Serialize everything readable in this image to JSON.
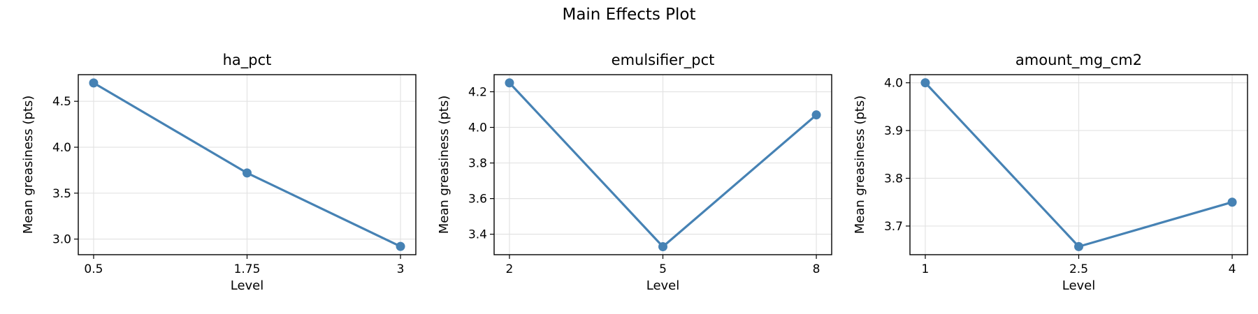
{
  "figure": {
    "title": "Main Effects Plot"
  },
  "colors": {
    "series": "#4682b4",
    "grid": "#e3e3e3",
    "axis": "#000000"
  },
  "chart_data": [
    {
      "type": "line",
      "title": "ha_pct",
      "xlabel": "Level",
      "ylabel": "Mean greasiness (pts)",
      "x": [
        0.5,
        1.75,
        3
      ],
      "x_tick_labels": [
        "0.5",
        "1.75",
        "3"
      ],
      "values": [
        4.7,
        3.72,
        2.92
      ],
      "ylim": [
        2.83,
        4.79
      ],
      "y_ticks": [
        3.0,
        3.5,
        4.0,
        4.5
      ],
      "y_tick_labels": [
        "3.0",
        "3.5",
        "4.0",
        "4.5"
      ],
      "grid": true,
      "marker": "circle"
    },
    {
      "type": "line",
      "title": "emulsifier_pct",
      "xlabel": "Level",
      "ylabel": "Mean greasiness (pts)",
      "x": [
        2,
        5,
        8
      ],
      "x_tick_labels": [
        "2",
        "5",
        "8"
      ],
      "values": [
        4.25,
        3.33,
        4.07
      ],
      "ylim": [
        3.285,
        4.296
      ],
      "y_ticks": [
        3.4,
        3.6,
        3.8,
        4.0,
        4.2
      ],
      "y_tick_labels": [
        "3.4",
        "3.6",
        "3.8",
        "4.0",
        "4.2"
      ],
      "grid": true,
      "marker": "circle"
    },
    {
      "type": "line",
      "title": "amount_mg_cm2",
      "xlabel": "Level",
      "ylabel": "Mean greasiness (pts)",
      "x": [
        1,
        2.5,
        4
      ],
      "x_tick_labels": [
        "1",
        "2.5",
        "4"
      ],
      "values": [
        4.0,
        3.657,
        3.75
      ],
      "ylim": [
        3.64,
        4.017
      ],
      "y_ticks": [
        3.7,
        3.8,
        3.9,
        4.0
      ],
      "y_tick_labels": [
        "3.7",
        "3.8",
        "3.9",
        "4.0"
      ],
      "grid": true,
      "marker": "circle"
    }
  ]
}
